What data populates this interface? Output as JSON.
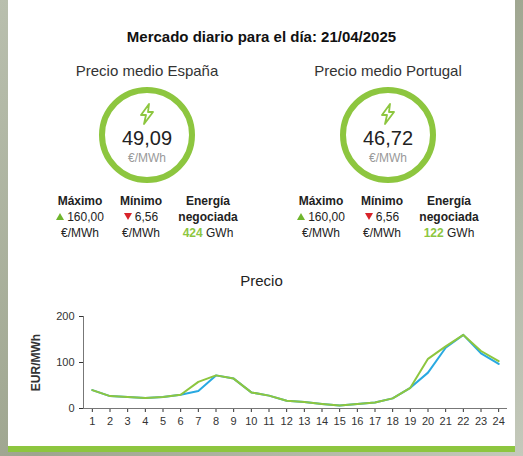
{
  "header": {
    "title": "Mercado diario para el día: 21/04/2025"
  },
  "panels": [
    {
      "title": "Precio medio España",
      "price": "49,09",
      "unit": "€/MWh",
      "max_label": "Máximo",
      "max": "160,00",
      "max_unit": "€/MWh",
      "min_label": "Mínimo",
      "min": "6,56",
      "min_unit": "€/MWh",
      "energy_label": "Energía negociada",
      "energy": "424",
      "energy_unit": "GWh"
    },
    {
      "title": "Precio medio Portugal",
      "price": "46,72",
      "unit": "€/MWh",
      "max_label": "Máximo",
      "max": "160,00",
      "max_unit": "€/MWh",
      "min_label": "Mínimo",
      "min": "6,56",
      "min_unit": "€/MWh",
      "energy_label": "Energía negociada",
      "energy": "122",
      "energy_unit": "GWh"
    }
  ],
  "chart_data": {
    "type": "line",
    "title": "Precio",
    "y_label": "EUR/MWh",
    "x": [
      1,
      2,
      3,
      4,
      5,
      6,
      7,
      8,
      9,
      10,
      11,
      12,
      13,
      14,
      15,
      16,
      17,
      18,
      19,
      20,
      21,
      22,
      23,
      24
    ],
    "xlim": [
      0.5,
      24.5
    ],
    "xticks": [
      1,
      2,
      3,
      4,
      5,
      6,
      7,
      8,
      9,
      10,
      11,
      12,
      13,
      14,
      15,
      16,
      17,
      18,
      19,
      20,
      21,
      22,
      23,
      24
    ],
    "ylim": [
      0,
      200
    ],
    "yticks": [
      0,
      100,
      200
    ],
    "grid": false,
    "series": [
      {
        "color": "#29a9e1",
        "values": [
          40,
          27,
          25,
          23,
          25,
          30,
          38,
          72,
          65,
          35,
          28,
          17,
          14,
          10,
          6.56,
          10,
          13,
          22,
          45,
          78,
          132,
          160,
          120,
          97
        ]
      },
      {
        "color": "#8dc63f",
        "values": [
          40,
          27,
          25,
          23,
          25,
          30,
          58,
          72,
          65,
          35,
          28,
          17,
          14,
          10,
          6.56,
          10,
          13,
          22,
          45,
          108,
          135,
          160,
          125,
          103
        ]
      }
    ]
  }
}
